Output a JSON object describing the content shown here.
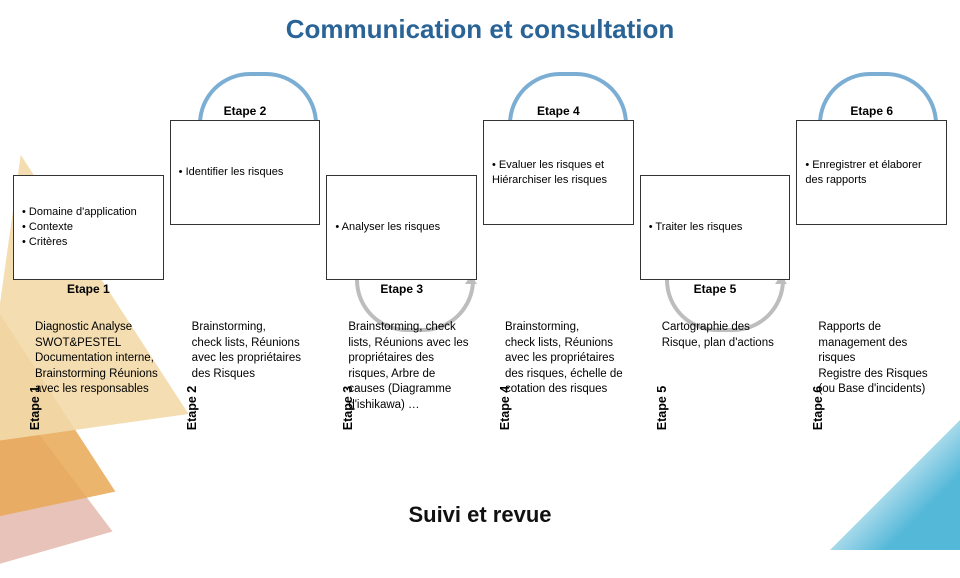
{
  "title": "Communication et consultation",
  "title_color": "#2a6496",
  "footer": "Suivi et revue",
  "arc_top_color": "#7caed4",
  "arc_bottom_color": "#bdbdbd",
  "steps": [
    {
      "label": "Etape 1",
      "pos": "down",
      "text": "• Domaine d'application\n• Contexte\n• Critères"
    },
    {
      "label": "Etape 2",
      "pos": "up",
      "text": "• Identifier les risques"
    },
    {
      "label": "Etape 3",
      "pos": "down",
      "text": "• Analyser les risques"
    },
    {
      "label": "Etape 4",
      "pos": "up",
      "text": "• Evaluer les risques et Hiérarchiser les risques"
    },
    {
      "label": "Etape 5",
      "pos": "down",
      "text": "• Traiter les risques"
    },
    {
      "label": "Etape 6",
      "pos": "up",
      "text": "• Enregistrer et élaborer des rapports"
    }
  ],
  "details": [
    {
      "vlabel": "Etape 1",
      "text": "Diagnostic Analyse SWOT&PESTEL Documentation interne,\nBrainstorming Réunions avec les responsables"
    },
    {
      "vlabel": "Etape 2",
      "text": "Brainstorming,\n check lists, Réunions avec les propriétaires des Risques"
    },
    {
      "vlabel": "Etape 3",
      "text": "Brainstorming, check lists, Réunions avec les propriétaires des risques, Arbre de causes (Diagramme d'ishikawa) …"
    },
    {
      "vlabel": "Etape 4",
      "text": "Brainstorming,\ncheck lists, Réunions avec les propriétaires des risques, échelle de cotation des risques"
    },
    {
      "vlabel": "Etape 5",
      "text": "Cartographie des Risque, plan d'actions"
    },
    {
      "vlabel": "Etape 6",
      "text": "Rapports de management des risques\nRegistre des Risques (ou Base d'incidents)"
    }
  ]
}
